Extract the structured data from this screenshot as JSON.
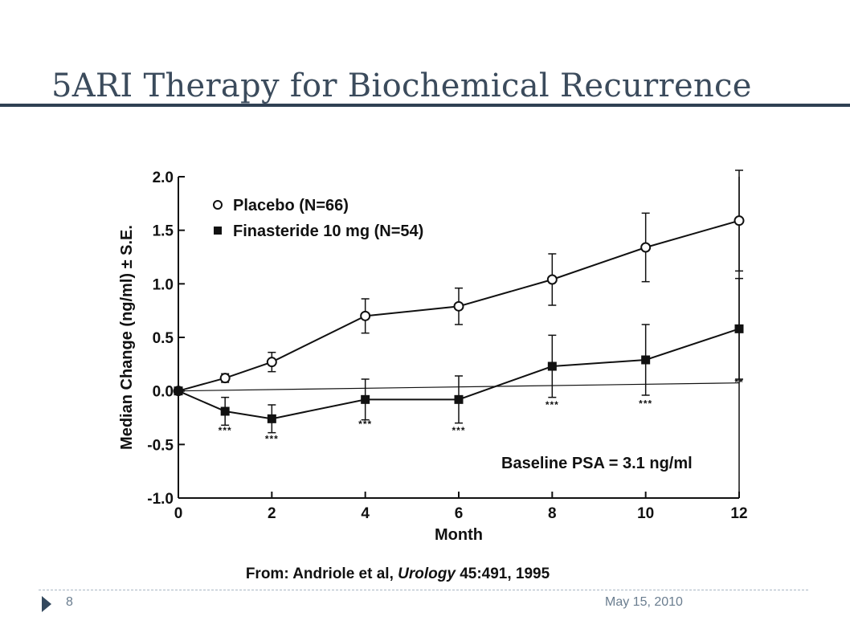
{
  "slide": {
    "title": "5ARI Therapy for Biochemical Recurrence",
    "source_prefix": "From: Andriole et al, ",
    "source_journal": "Urology",
    "source_suffix": " 45:491, 1995",
    "page_number": "8",
    "date": "May 15, 2010"
  },
  "chart_data": {
    "type": "line",
    "xlabel": "Month",
    "ylabel": "Median Change (ng/ml) ± S.E.",
    "xlim": [
      0,
      12
    ],
    "ylim": [
      -1.0,
      2.0
    ],
    "x_ticks": [
      0,
      2,
      4,
      6,
      8,
      10,
      12
    ],
    "y_ticks": [
      2.0,
      1.5,
      1.0,
      0.5,
      0.0,
      -0.5,
      -1.0
    ],
    "y_tick_labels": [
      "2.0",
      "1.5",
      "1.0",
      "0.5",
      "0.0",
      "-0.5",
      "-1.0"
    ],
    "grid": false,
    "legend_position": "top-left",
    "reference_line": 0.0,
    "annotation": "Baseline PSA = 3.1 ng/ml",
    "series": [
      {
        "name": "Placebo (N=66)",
        "marker": "open-circle",
        "x": [
          0,
          1,
          2,
          4,
          6,
          8,
          10,
          12
        ],
        "y": [
          0.0,
          0.12,
          0.27,
          0.7,
          0.79,
          1.04,
          1.34,
          1.59
        ],
        "error": [
          0.0,
          0.04,
          0.09,
          0.16,
          0.17,
          0.24,
          0.32,
          0.47
        ]
      },
      {
        "name": "Finasteride 10 mg (N=54)",
        "marker": "filled-square",
        "x": [
          0,
          1,
          2,
          4,
          6,
          8,
          10,
          12
        ],
        "y": [
          0.0,
          -0.19,
          -0.26,
          -0.08,
          -0.08,
          0.23,
          0.29,
          0.58
        ],
        "error": [
          0.0,
          0.13,
          0.13,
          0.19,
          0.22,
          0.29,
          0.33,
          0.47
        ]
      }
    ],
    "significance_marks": [
      {
        "x": 1,
        "y": -0.4,
        "label": "***"
      },
      {
        "x": 2,
        "y": -0.48,
        "label": "***"
      },
      {
        "x": 4,
        "y": -0.34,
        "label": "***"
      },
      {
        "x": 6,
        "y": -0.4,
        "label": "***"
      },
      {
        "x": 8,
        "y": -0.16,
        "label": "***"
      },
      {
        "x": 10,
        "y": -0.15,
        "label": "***"
      },
      {
        "x": 12,
        "y": 0.05,
        "label": "**"
      }
    ]
  }
}
